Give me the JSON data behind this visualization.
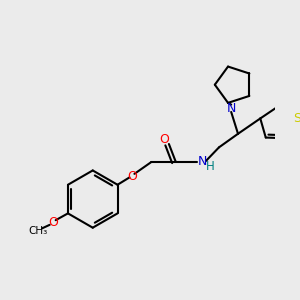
{
  "bg_color": "#ebebeb",
  "atom_colors": {
    "N": "#0000cc",
    "O": "#ff0000",
    "S": "#cccc00",
    "C": "#000000",
    "H": "#008080"
  },
  "bond_color": "#000000",
  "bond_width": 1.5
}
